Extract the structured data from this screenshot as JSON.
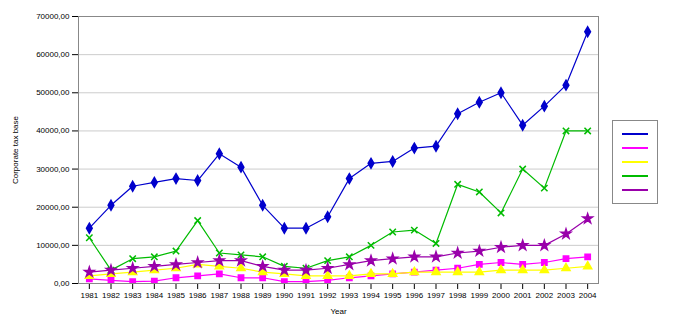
{
  "chart_data": {
    "type": "line",
    "xlabel": "Year",
    "ylabel": "Corporate tax base",
    "x": [
      1981,
      1982,
      1983,
      1984,
      1985,
      1986,
      1987,
      1988,
      1989,
      1990,
      1991,
      1992,
      1993,
      1994,
      1995,
      1996,
      1997,
      1998,
      1999,
      2000,
      2001,
      2002,
      2003,
      2004
    ],
    "series": [
      {
        "color": "#0000CC",
        "marker": "diamond",
        "values": [
          14500,
          20500,
          25500,
          26500,
          27500,
          27000,
          34000,
          30500,
          20500,
          14500,
          14500,
          17500,
          27500,
          31500,
          32000,
          35500,
          36000,
          44500,
          47500,
          50000,
          41500,
          46500,
          52000,
          66000
        ]
      },
      {
        "color": "#FF00FF",
        "marker": "square",
        "values": [
          1200,
          800,
          500,
          600,
          1500,
          2000,
          2500,
          1500,
          1500,
          500,
          500,
          800,
          1500,
          2000,
          2500,
          3000,
          3500,
          4000,
          5000,
          5500,
          5000,
          5500,
          6500,
          7000
        ]
      },
      {
        "color": "#FFFF00",
        "marker": "triangle",
        "values": [
          2000,
          2500,
          3000,
          3500,
          4000,
          5000,
          4500,
          4000,
          3000,
          2500,
          2000,
          2000,
          2000,
          2500,
          2500,
          3000,
          3000,
          3000,
          3000,
          3500,
          3500,
          3500,
          4000,
          4500
        ]
      },
      {
        "color": "#00BB00",
        "marker": "x",
        "values": [
          12000,
          3500,
          6500,
          7000,
          8500,
          16500,
          8000,
          7500,
          7000,
          4500,
          4000,
          6000,
          7000,
          10000,
          13500,
          14000,
          10500,
          26000,
          24000,
          18500,
          30000,
          25000,
          40000,
          40000
        ]
      },
      {
        "color": "#9900AA",
        "marker": "star",
        "values": [
          3000,
          3500,
          4000,
          4500,
          5000,
          5500,
          6000,
          6000,
          4500,
          3500,
          3500,
          4000,
          5000,
          6000,
          6500,
          7000,
          7000,
          8000,
          8500,
          9500,
          10000,
          10000,
          13000,
          17000
        ]
      }
    ],
    "xlim": [
      1980.5,
      2004.5
    ],
    "xticks": [
      1981,
      1982,
      1983,
      1984,
      1985,
      1986,
      1987,
      1988,
      1989,
      1990,
      1991,
      1992,
      1993,
      1994,
      1995,
      1996,
      1997,
      1998,
      1999,
      2000,
      2001,
      2002,
      2003,
      2004
    ],
    "ylim": [
      0,
      70000
    ],
    "yticks": [
      {
        "value": 0,
        "label": "0,00"
      },
      {
        "value": 10000,
        "label": "10000,00"
      },
      {
        "value": 20000,
        "label": "20000,00"
      },
      {
        "value": 30000,
        "label": "30000,00"
      },
      {
        "value": 40000,
        "label": "40000,00"
      },
      {
        "value": 50000,
        "label": "50000,00"
      },
      {
        "value": 60000,
        "label": "60000,00"
      },
      {
        "value": 70000,
        "label": "70000,00"
      }
    ],
    "grid": true,
    "legend": "right"
  }
}
